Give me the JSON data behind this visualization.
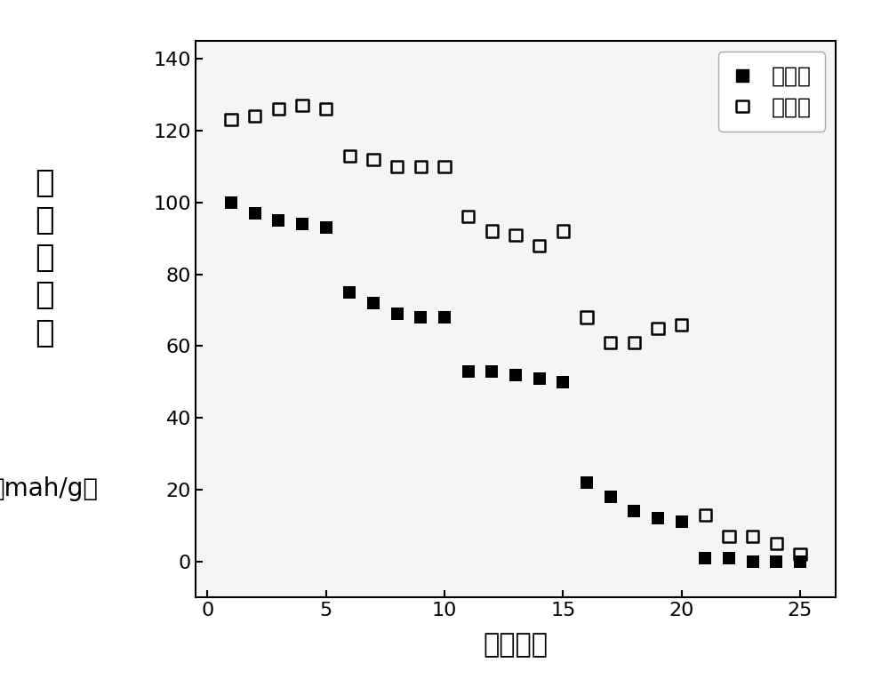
{
  "no_doping_x": [
    1,
    2,
    3,
    4,
    5,
    6,
    7,
    8,
    9,
    10,
    11,
    12,
    13,
    14,
    15,
    16,
    17,
    18,
    19,
    20,
    21,
    22,
    23,
    24,
    25
  ],
  "no_doping_y": [
    100,
    97,
    95,
    94,
    93,
    75,
    72,
    69,
    68,
    68,
    53,
    53,
    52,
    51,
    50,
    22,
    18,
    14,
    12,
    11,
    1,
    1,
    0,
    0,
    0
  ],
  "ca_doping_x": [
    1,
    2,
    3,
    4,
    5,
    6,
    7,
    8,
    9,
    10,
    11,
    12,
    13,
    14,
    15,
    16,
    17,
    18,
    19,
    20,
    21,
    22,
    23,
    24,
    25
  ],
  "ca_doping_y": [
    123,
    124,
    126,
    127,
    126,
    113,
    112,
    110,
    110,
    110,
    96,
    92,
    91,
    88,
    92,
    68,
    61,
    61,
    65,
    66,
    13,
    7,
    7,
    5,
    2
  ],
  "xlabel": "循环圈数",
  "legend_no_doping": "无掺杂",
  "legend_ca_doping": "馒掺杂",
  "ylabel_chars": [
    "放",
    "电",
    "比",
    "容",
    "量",
    "mah/g"
  ],
  "ylabel_top": "放\n电\n比\n容\n量",
  "ylabel_bottom": "（mah/g）",
  "xlim": [
    -0.5,
    26.5
  ],
  "ylim": [
    -10,
    145
  ],
  "yticks": [
    0,
    20,
    40,
    60,
    80,
    100,
    120,
    140
  ],
  "xticks": [
    0,
    5,
    10,
    15,
    20,
    25
  ],
  "background_color": "#ffffff",
  "plot_bg_color": "#f5f5f5",
  "marker_size": 90,
  "tick_labelsize": 16
}
